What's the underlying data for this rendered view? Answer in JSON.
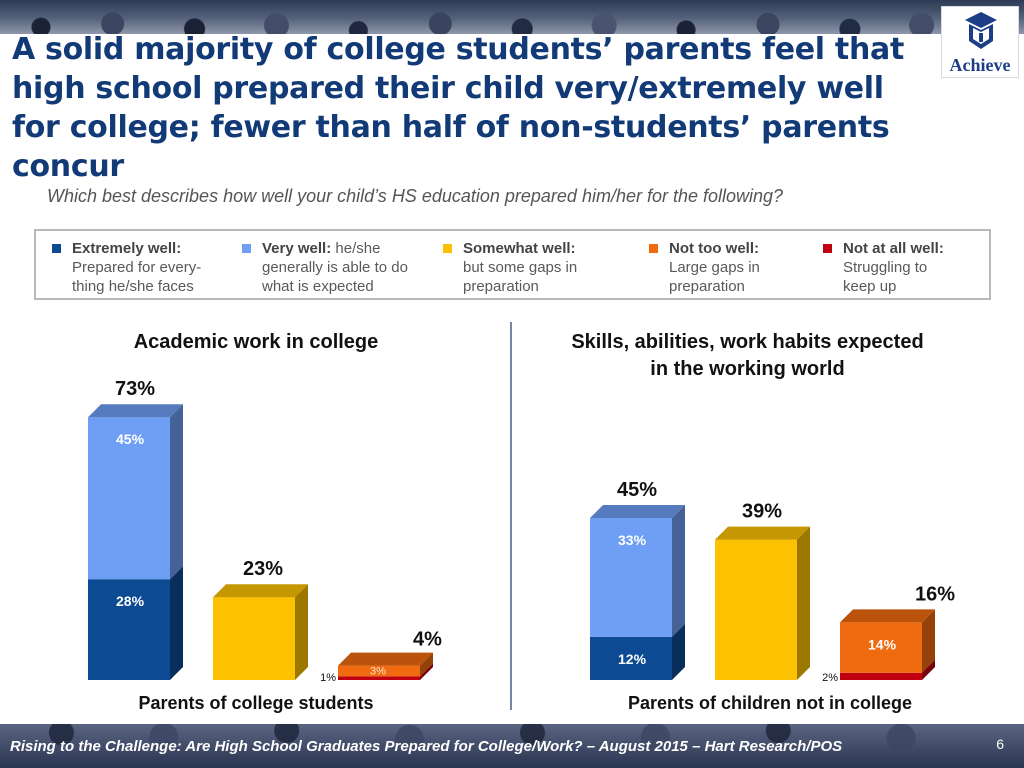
{
  "slide": {
    "headline": "A solid majority of college students’ parents feel that high school prepared their child very/extremely well for college; fewer than half of non-students’ parents concur",
    "question": "Which best describes how well your child’s HS education prepared him/her for the following?",
    "logo_text": "Achieve",
    "footer": "Rising to the Challenge:  Are High School Graduates Prepared for College/Work? – August 2015 – Hart Research/POS",
    "page_number": "6"
  },
  "legend": [
    {
      "label": "Extremely well:",
      "line1": "",
      "line2": "Prepared for every-",
      "line3": "thing he/she faces",
      "color": "#0d4a94"
    },
    {
      "label": "Very well:",
      "line1": " he/she",
      "line2": "generally is able to do",
      "line3": "what is expected",
      "color": "#6f9ef5"
    },
    {
      "label": "Somewhat well:",
      "line1": "",
      "line2": "but some gaps in",
      "line3": "preparation",
      "color": "#fcc100"
    },
    {
      "label": "Not too well:",
      "line1": "",
      "line2": "Large gaps in",
      "line3": "preparation",
      "color": "#f06a10"
    },
    {
      "label": "Not at all well:",
      "line1": "",
      "line2": "Struggling to",
      "line3": "keep up",
      "color": "#c00010"
    }
  ],
  "chart_data": [
    {
      "type": "bar",
      "title": "Academic work in college",
      "group_label": "Parents of college students",
      "stacked": true,
      "ylim": [
        0,
        100
      ],
      "bars": [
        {
          "total_label": "73%",
          "segments": [
            {
              "name": "Extremely well",
              "value": 28,
              "label": "28%",
              "color": "#0d4a94"
            },
            {
              "name": "Very well",
              "value": 45,
              "label": "45%",
              "color": "#6f9ef5"
            }
          ]
        },
        {
          "total_label": "23%",
          "segments": [
            {
              "name": "Somewhat well",
              "value": 23,
              "label": "",
              "color": "#fcc100"
            }
          ]
        },
        {
          "total_label": "4%",
          "segments": [
            {
              "name": "Not at all well",
              "value": 1,
              "label": "1%",
              "color": "#c00010"
            },
            {
              "name": "Not too well",
              "value": 3,
              "label": "3%",
              "color": "#f06a10"
            }
          ]
        }
      ]
    },
    {
      "type": "bar",
      "title": "Skills, abilities, work habits expected in the working world",
      "group_label": "Parents of children not in college",
      "stacked": true,
      "ylim": [
        0,
        100
      ],
      "bars": [
        {
          "total_label": "45%",
          "segments": [
            {
              "name": "Extremely well",
              "value": 12,
              "label": "12%",
              "color": "#0d4a94"
            },
            {
              "name": "Very well",
              "value": 33,
              "label": "33%",
              "color": "#6f9ef5"
            }
          ]
        },
        {
          "total_label": "39%",
          "segments": [
            {
              "name": "Somewhat well",
              "value": 39,
              "label": "",
              "color": "#fcc100"
            }
          ]
        },
        {
          "total_label": "16%",
          "segments": [
            {
              "name": "Not at all well",
              "value": 2,
              "label": "2%",
              "color": "#c00010"
            },
            {
              "name": "Not too well",
              "value": 14,
              "label": "14%",
              "color": "#f06a10"
            }
          ]
        }
      ]
    }
  ]
}
